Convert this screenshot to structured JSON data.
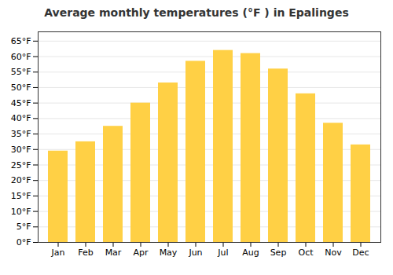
{
  "chart_data": {
    "type": "bar",
    "title": "Average monthly temperatures (°F ) in Epalinges",
    "categories": [
      "Jan",
      "Feb",
      "Mar",
      "Apr",
      "May",
      "Jun",
      "Jul",
      "Aug",
      "Sep",
      "Oct",
      "Nov",
      "Dec"
    ],
    "values": [
      29.5,
      32.5,
      37.5,
      45.0,
      51.5,
      58.5,
      62.0,
      61.0,
      56.0,
      48.0,
      38.5,
      31.5
    ],
    "color": "#FFD045",
    "ylim": [
      0,
      68
    ],
    "yticks": [
      {
        "value": 0,
        "label": "0°F"
      },
      {
        "value": 5,
        "label": "5°F"
      },
      {
        "value": 10,
        "label": "10°F"
      },
      {
        "value": 15,
        "label": "15°F"
      },
      {
        "value": 20,
        "label": "20°F"
      },
      {
        "value": 25,
        "label": "25°F"
      },
      {
        "value": 30,
        "label": "30°F"
      },
      {
        "value": 35,
        "label": "35°F"
      },
      {
        "value": 40,
        "label": "40°F"
      },
      {
        "value": 45,
        "label": "45°F"
      },
      {
        "value": 50,
        "label": "50°F"
      },
      {
        "value": 55,
        "label": "55°F"
      },
      {
        "value": 60,
        "label": "60°F"
      },
      {
        "value": 65,
        "label": "65°F"
      }
    ],
    "grid": true
  }
}
